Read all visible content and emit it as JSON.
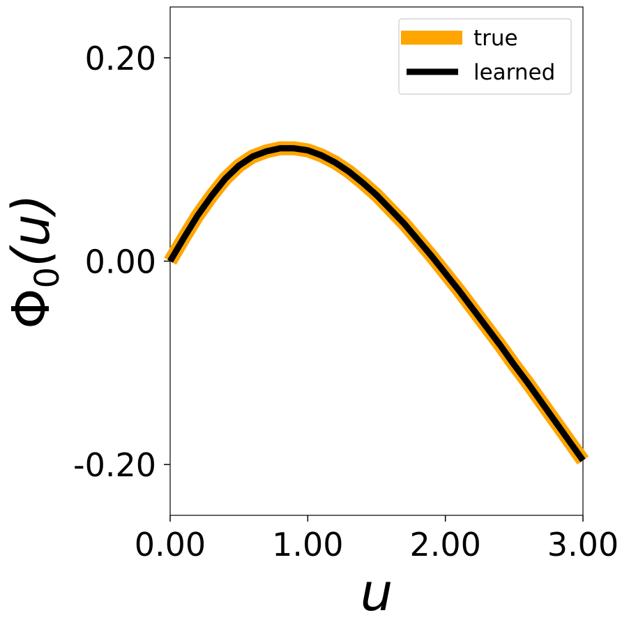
{
  "chart_data": {
    "type": "line",
    "title": "",
    "xlabel": "u",
    "ylabel_main": "Φ",
    "ylabel_sub": "0",
    "ylabel_tail": "(u)",
    "xlim": [
      0,
      3
    ],
    "ylim": [
      -0.25,
      0.25
    ],
    "xticks": [
      0,
      1,
      2,
      3
    ],
    "xtick_labels": [
      "0.00",
      "1.00",
      "2.00",
      "3.00"
    ],
    "yticks": [
      -0.2,
      0,
      0.2
    ],
    "ytick_labels": [
      "-0.20",
      "0.00",
      "0.20"
    ],
    "grid": false,
    "legend_position": "top-right",
    "x": [
      0.0,
      0.1,
      0.2,
      0.3,
      0.4,
      0.5,
      0.6,
      0.7,
      0.8,
      0.9,
      1.0,
      1.1,
      1.2,
      1.3,
      1.4,
      1.5,
      1.6,
      1.7,
      1.8,
      1.9,
      2.0,
      2.1,
      2.2,
      2.3,
      2.4,
      2.5,
      2.6,
      2.7,
      2.8,
      2.9,
      3.0
    ],
    "series": [
      {
        "name": "true",
        "color": "#FFA500",
        "values": [
          0.0,
          0.023,
          0.045,
          0.064,
          0.081,
          0.094,
          0.103,
          0.108,
          0.111,
          0.111,
          0.109,
          0.104,
          0.097,
          0.088,
          0.077,
          0.065,
          0.051,
          0.037,
          0.021,
          0.005,
          -0.012,
          -0.029,
          -0.047,
          -0.065,
          -0.083,
          -0.102,
          -0.12,
          -0.139,
          -0.158,
          -0.177,
          -0.196
        ]
      },
      {
        "name": "learned",
        "color": "#000000",
        "values": [
          0.0,
          0.023,
          0.045,
          0.064,
          0.081,
          0.094,
          0.103,
          0.108,
          0.111,
          0.111,
          0.109,
          0.104,
          0.097,
          0.088,
          0.077,
          0.065,
          0.051,
          0.037,
          0.021,
          0.005,
          -0.012,
          -0.029,
          -0.047,
          -0.065,
          -0.083,
          -0.102,
          -0.12,
          -0.139,
          -0.158,
          -0.177,
          -0.196
        ]
      }
    ]
  }
}
